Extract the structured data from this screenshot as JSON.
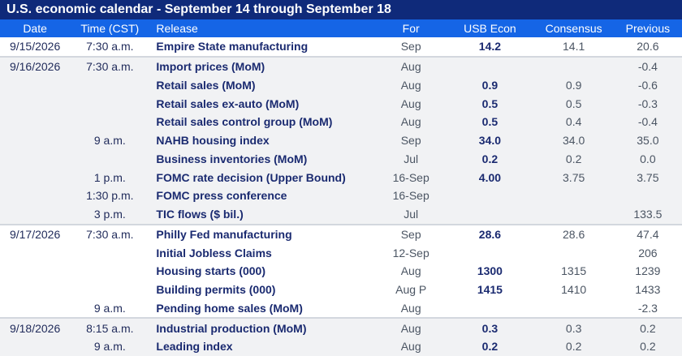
{
  "title": "U.S. economic calendar - September 14 through September 18",
  "headers": {
    "date": "Date",
    "time": "Time (CST)",
    "release": "Release",
    "for": "For",
    "usb": "USB Econ",
    "consensus": "Consensus",
    "previous": "Previous"
  },
  "colors": {
    "title_bg": "#0f2a7a",
    "header_bg": "#1565e6",
    "row_shade": "#f1f2f4"
  },
  "rows": [
    {
      "date": "9/15/2026",
      "time": "7:30 a.m.",
      "release": "Empire State manufacturing",
      "for": "Sep",
      "usb": "14.2",
      "consensus": "14.1",
      "previous": "20.6",
      "shade": false,
      "group_start": false
    },
    {
      "date": "9/16/2026",
      "time": "7:30 a.m.",
      "release": "Import prices (MoM)",
      "for": "Aug",
      "usb": "",
      "consensus": "",
      "previous": "-0.4",
      "shade": true,
      "group_start": true
    },
    {
      "date": "",
      "time": "",
      "release": "Retail sales (MoM)",
      "for": "Aug",
      "usb": "0.9",
      "consensus": "0.9",
      "previous": "-0.6",
      "shade": true,
      "group_start": false
    },
    {
      "date": "",
      "time": "",
      "release": "Retail sales ex-auto (MoM)",
      "for": "Aug",
      "usb": "0.5",
      "consensus": "0.5",
      "previous": "-0.3",
      "shade": true,
      "group_start": false
    },
    {
      "date": "",
      "time": "",
      "release": "Retail sales control group (MoM)",
      "for": "Aug",
      "usb": "0.5",
      "consensus": "0.4",
      "previous": "-0.4",
      "shade": true,
      "group_start": false
    },
    {
      "date": "",
      "time": "9 a.m.",
      "release": "NAHB housing index",
      "for": "Sep",
      "usb": "34.0",
      "consensus": "34.0",
      "previous": "35.0",
      "shade": true,
      "group_start": false
    },
    {
      "date": "",
      "time": "",
      "release": "Business inventories (MoM)",
      "for": "Jul",
      "usb": "0.2",
      "consensus": "0.2",
      "previous": "0.0",
      "shade": true,
      "group_start": false
    },
    {
      "date": "",
      "time": "1 p.m.",
      "release": "FOMC rate decision (Upper Bound)",
      "for": "16-Sep",
      "usb": "4.00",
      "consensus": "3.75",
      "previous": "3.75",
      "shade": true,
      "group_start": false
    },
    {
      "date": "",
      "time": "1:30 p.m.",
      "release": "FOMC press conference",
      "for": "16-Sep",
      "usb": "",
      "consensus": "",
      "previous": "",
      "shade": true,
      "group_start": false
    },
    {
      "date": "",
      "time": "3 p.m.",
      "release": "TIC flows ($ bil.)",
      "for": "Jul",
      "usb": "",
      "consensus": "",
      "previous": "133.5",
      "shade": true,
      "group_start": false
    },
    {
      "date": "9/17/2026",
      "time": "7:30 a.m.",
      "release": "Philly Fed manufacturing",
      "for": "Sep",
      "usb": "28.6",
      "consensus": "28.6",
      "previous": "47.4",
      "shade": false,
      "group_start": true
    },
    {
      "date": "",
      "time": "",
      "release": "Initial Jobless Claims",
      "for": "12-Sep",
      "usb": "",
      "consensus": "",
      "previous": "206",
      "shade": false,
      "group_start": false
    },
    {
      "date": "",
      "time": "",
      "release": "Housing starts (000)",
      "for": "Aug",
      "usb": "1300",
      "consensus": "1315",
      "previous": "1239",
      "shade": false,
      "group_start": false
    },
    {
      "date": "",
      "time": "",
      "release": "Building permits (000)",
      "for": "Aug P",
      "usb": "1415",
      "consensus": "1410",
      "previous": "1433",
      "shade": false,
      "group_start": false
    },
    {
      "date": "",
      "time": "9 a.m.",
      "release": "Pending home sales (MoM)",
      "for": "Aug",
      "usb": "",
      "consensus": "",
      "previous": "-2.3",
      "shade": false,
      "group_start": false
    },
    {
      "date": "9/18/2026",
      "time": "8:15 a.m.",
      "release": "Industrial production (MoM)",
      "for": "Aug",
      "usb": "0.3",
      "consensus": "0.3",
      "previous": "0.2",
      "shade": true,
      "group_start": true
    },
    {
      "date": "",
      "time": "9 a.m.",
      "release": "Leading index",
      "for": "Aug",
      "usb": "0.2",
      "consensus": "0.2",
      "previous": "0.2",
      "shade": true,
      "group_start": false
    }
  ]
}
